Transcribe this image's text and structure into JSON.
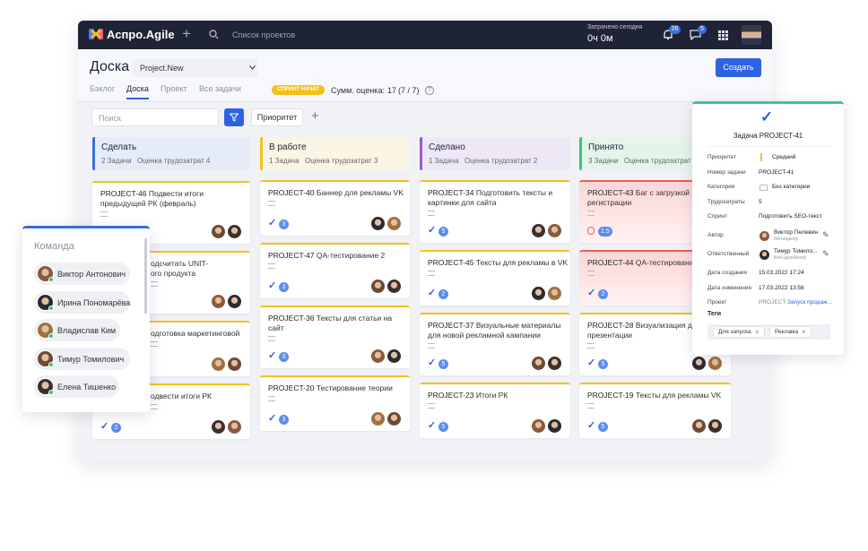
{
  "topbar": {
    "logo": "Аспро.Agile",
    "projects_link": "Список проектов",
    "time_label": "Затрачено сегодня",
    "time_value": "0ч 0м",
    "notifications": "26",
    "messages": "5"
  },
  "header": {
    "title": "Доска",
    "project": "Project.New",
    "create_button": "Создать",
    "tabs": [
      "Бэклог",
      "Доска",
      "Проект",
      "Все задачи"
    ],
    "active_tab": 1,
    "sprint_status": "СПРИНТ НАЧАТ",
    "estimate_label": "Сумм. оценка:",
    "estimate_value": "17",
    "estimate_ratio": "(7 / 7)"
  },
  "toolbar": {
    "search": "Поиск",
    "priority": "Приоритет"
  },
  "columns": [
    {
      "title": "Сделать",
      "count": "2 Задачи",
      "estimate": "Оценка трудозатрат 4",
      "color": "#3a6fd8",
      "bg": "#e6ecf7",
      "cards": [
        {
          "id": "PROJECT-46",
          "lines": [
            "Подвести итоги",
            "предыдущей РК (февраль)"
          ]
        },
        {
          "lines": [
            "одсчитать UNIT-",
            "ого продукта"
          ]
        },
        {
          "lines": [
            "одготовка маркетинговой"
          ]
        },
        {
          "lines": [
            "одвести итоги РК"
          ],
          "badge": "2"
        }
      ]
    },
    {
      "title": "В работе",
      "count": "1 Задача",
      "estimate": "Оценка трудозатрат 3",
      "color": "#f2c21b",
      "bg": "#faf5e4",
      "cards": [
        {
          "id": "PROJECT-40",
          "lines": [
            "Баннер для рекламы VK"
          ],
          "badge": "3"
        },
        {
          "id": "PROJECT-47",
          "lines": [
            "QA-тестирование 2"
          ],
          "badge": "3"
        },
        {
          "id": "PROJECT-36",
          "lines": [
            "Тексты для статьи на",
            "сайт"
          ],
          "badge": "3"
        },
        {
          "id": "PROJECT-20",
          "lines": [
            "Тестирование теории"
          ],
          "badge": "3"
        }
      ]
    },
    {
      "title": "Сделано",
      "count": "1 Задача",
      "estimate": "Оценка трудозатрат 2",
      "color": "#9b59d0",
      "bg": "#eee8f6",
      "cards": [
        {
          "id": "PROJECT-34",
          "lines": [
            "Подготовить тексты и",
            "картинки для сайта"
          ],
          "badge": "5"
        },
        {
          "id": "PROJECT-45",
          "lines": [
            "Тексты для рекламы в VK"
          ],
          "badge": "2"
        },
        {
          "id": "PROJECT-37",
          "lines": [
            "Визуальные материалы",
            "для новой рекламной кампании"
          ],
          "badge": "5"
        },
        {
          "id": "PROJECT-23",
          "lines": [
            "Итоги РК"
          ],
          "badge": "5"
        }
      ]
    },
    {
      "title": "Принято",
      "count": "3 Задачи",
      "estimate": "Оценка трудозатрат",
      "color": "#3cc47c",
      "bg": "#e5f4ea",
      "cards": [
        {
          "id": "PROJECT-43",
          "lines": [
            "Баг с загрузкой з",
            "регистрации"
          ],
          "badge": "1.5",
          "urgent": true
        },
        {
          "id": "PROJECT-44",
          "lines": [
            "QA-тестирование"
          ],
          "badge": "2",
          "urgent": true
        },
        {
          "id": "PROJECT-28",
          "lines": [
            "Визуализация дл",
            "презентации"
          ],
          "badge": "5"
        },
        {
          "id": "PROJECT-19",
          "lines": [
            "Тексты для рекламы VK"
          ],
          "badge": "5"
        }
      ]
    }
  ],
  "team": {
    "title": "Команда",
    "members": [
      "Виктор Антонович",
      "Ирина Пономарёва",
      "Владислав Ким",
      "Тимур Томилович",
      "Елена Тишенко"
    ]
  },
  "task": {
    "heading": "Задача",
    "id": "PROJECT-41",
    "fields": [
      {
        "label": "Приоритет",
        "value": "Средний"
      },
      {
        "label": "Номер задачи",
        "value": "PROJECT-41"
      },
      {
        "label": "Категория",
        "value": "Без категории"
      },
      {
        "label": "Трудозатраты",
        "value": "5"
      },
      {
        "label": "Спринт",
        "value": "Подготовить SEO-текст"
      },
      {
        "label": "Автор",
        "value": "Виктор Пелевин",
        "role": "Менеджер"
      },
      {
        "label": "Ответственный",
        "value": "Тимур Томило...",
        "role": "Веб-дизайнер"
      },
      {
        "label": "Дата создания",
        "value": "15.03.2022 17:24"
      },
      {
        "label": "Дата изменения",
        "value": "17.03.2022 13:58"
      },
      {
        "label": "Проект",
        "prefix": "PROJECT",
        "value": "Запуск продаж..."
      }
    ],
    "tags_label": "Теги",
    "tags": [
      "Для запуска",
      "Реклама"
    ]
  }
}
